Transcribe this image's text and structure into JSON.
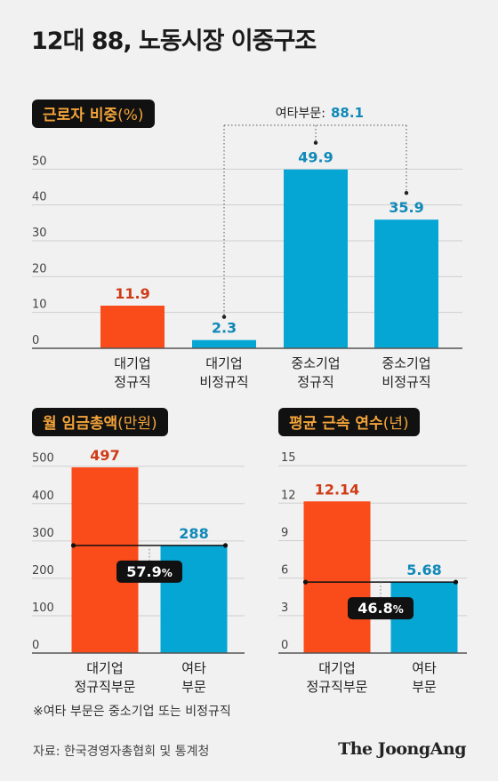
{
  "title": "12대 88, 노동시장 이중구조",
  "colors": {
    "orange": "#fa4b1b",
    "blue": "#06a6d4",
    "orange_text": "#cf3b17",
    "blue_text": "#1089b8",
    "label_bg": "#111111",
    "label_text": "#f2a33a",
    "axis": "#555555",
    "grid": "#cfcfcf"
  },
  "sections": {
    "share": {
      "label": "근로자 비중",
      "unit": "(%)"
    },
    "wage": {
      "label": "월 임금총액",
      "unit": "(만원)"
    },
    "tenure": {
      "label": "평균 근속 연수",
      "unit": "(년)"
    }
  },
  "chart_data": [
    {
      "type": "bar",
      "name": "근로자 비중",
      "categories": [
        [
          "대기업",
          "정규직"
        ],
        [
          "대기업",
          "비정규직"
        ],
        [
          "중소기업",
          "정규직"
        ],
        [
          "중소기업",
          "비정규직"
        ]
      ],
      "values": [
        11.9,
        2.3,
        49.9,
        35.9
      ],
      "value_labels": [
        "11.9",
        "2.3",
        "49.9",
        "35.9"
      ],
      "bar_colors": [
        "orange",
        "blue",
        "blue",
        "blue"
      ],
      "yticks": [
        "0",
        "10",
        "20",
        "30",
        "40",
        "50"
      ],
      "ylim": [
        0,
        60
      ],
      "grid": true,
      "annotation": {
        "label": "여타부문:",
        "value": "88.1",
        "connects": [
          1,
          2,
          3
        ]
      }
    },
    {
      "type": "bar",
      "name": "월 임금총액",
      "categories": [
        [
          "대기업",
          "정규직부문"
        ],
        [
          "여타",
          "부문"
        ]
      ],
      "values": [
        497,
        288
      ],
      "value_labels": [
        "497",
        "288"
      ],
      "bar_colors": [
        "orange",
        "blue"
      ],
      "yticks": [
        "0",
        "100",
        "200",
        "300",
        "400",
        "500"
      ],
      "ylim": [
        0,
        535
      ],
      "grid": true,
      "ratio": {
        "value": "57.9",
        "unit": "%"
      }
    },
    {
      "type": "bar",
      "name": "평균 근속 연수",
      "categories": [
        [
          "대기업",
          "정규직부문"
        ],
        [
          "여타",
          "부문"
        ]
      ],
      "values": [
        12.14,
        5.68
      ],
      "value_labels": [
        "12.14",
        "5.68"
      ],
      "bar_colors": [
        "orange",
        "blue"
      ],
      "yticks": [
        "0",
        "3",
        "6",
        "9",
        "12",
        "15"
      ],
      "ylim": [
        0,
        16
      ],
      "grid": true,
      "ratio": {
        "value": "46.8",
        "unit": "%"
      }
    }
  ],
  "footnote": "※여타 부문은 중소기업 또는 비정규직",
  "source": "자료: 한국경영자총협회 및 통계청",
  "logo": "The JoongAng"
}
